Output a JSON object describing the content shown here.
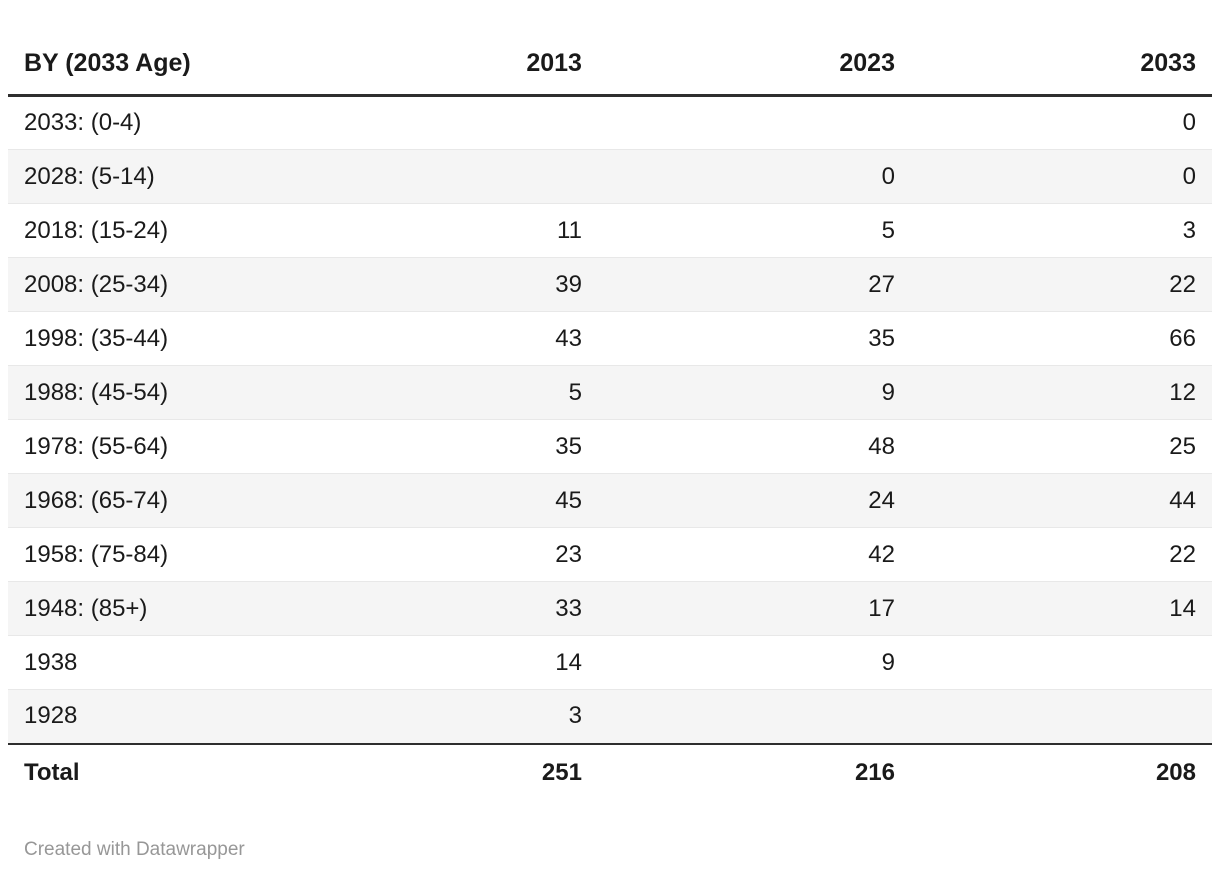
{
  "chart_data": {
    "type": "table",
    "columns": [
      "BY (2033 Age)",
      "2013",
      "2023",
      "2033"
    ],
    "rows": [
      {
        "label": "2033: (0-4)",
        "y2013": "",
        "y2023": "",
        "y2033": "0"
      },
      {
        "label": "2028: (5-14)",
        "y2013": "",
        "y2023": "0",
        "y2033": "0"
      },
      {
        "label": "2018: (15-24)",
        "y2013": "11",
        "y2023": "5",
        "y2033": "3"
      },
      {
        "label": "2008: (25-34)",
        "y2013": "39",
        "y2023": "27",
        "y2033": "22"
      },
      {
        "label": "1998: (35-44)",
        "y2013": "43",
        "y2023": "35",
        "y2033": "66"
      },
      {
        "label": "1988: (45-54)",
        "y2013": "5",
        "y2023": "9",
        "y2033": "12"
      },
      {
        "label": "1978: (55-64)",
        "y2013": "35",
        "y2023": "48",
        "y2033": "25"
      },
      {
        "label": "1968: (65-74)",
        "y2013": "45",
        "y2023": "24",
        "y2033": "44"
      },
      {
        "label": "1958: (75-84)",
        "y2013": "23",
        "y2023": "42",
        "y2033": "22"
      },
      {
        "label": "1948: (85+)",
        "y2013": "33",
        "y2023": "17",
        "y2033": "14"
      },
      {
        "label": "1938",
        "y2013": "14",
        "y2023": "9",
        "y2033": ""
      },
      {
        "label": "1928",
        "y2013": "3",
        "y2023": "",
        "y2033": ""
      }
    ],
    "total": {
      "label": "Total",
      "y2013": "251",
      "y2023": "216",
      "y2033": "208"
    },
    "layout_hints": {
      "striped": true,
      "stripe_color": "#f5f5f5",
      "header_rule_color": "#2e2e2e",
      "numeric_alignment": "right"
    }
  },
  "footer": {
    "attribution": "Created with Datawrapper"
  }
}
